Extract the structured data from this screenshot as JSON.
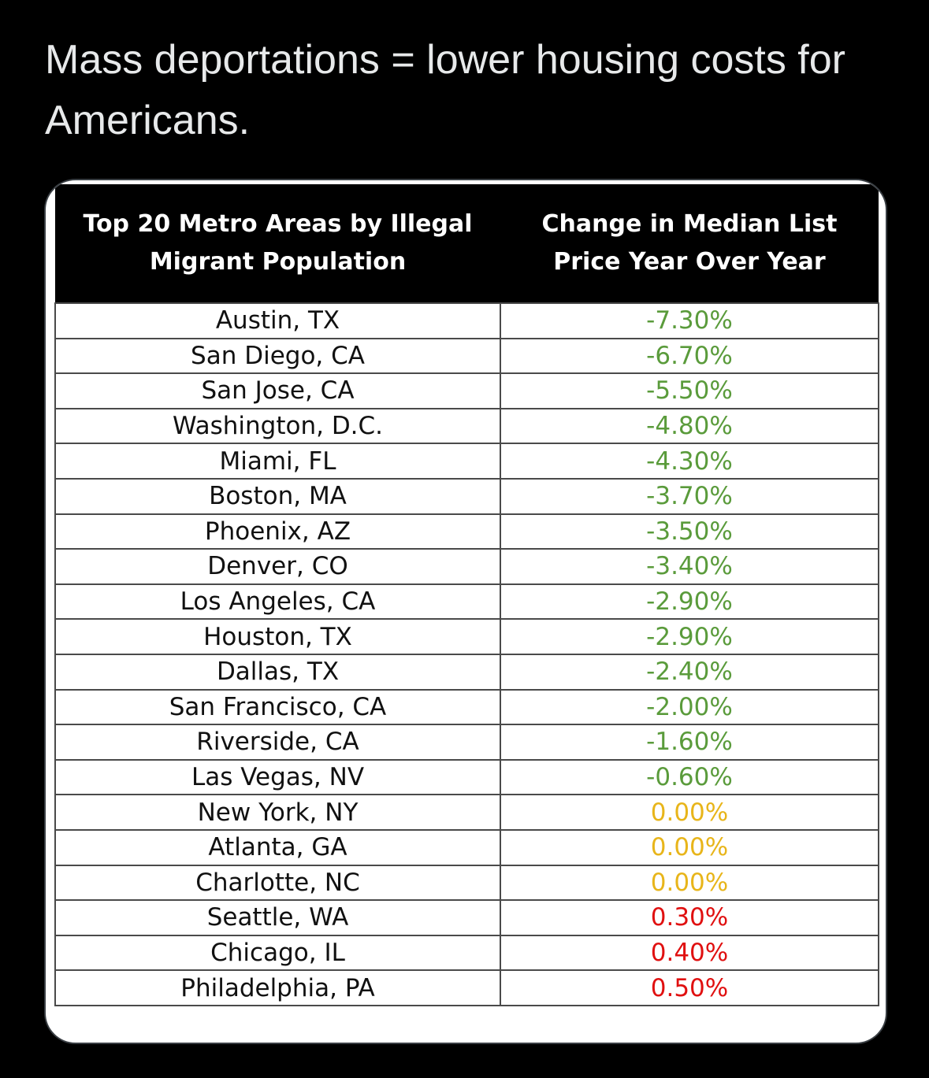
{
  "post": {
    "text": "Mass deportations = lower housing costs for Americans."
  },
  "colors": {
    "negative": "#5a9b3b",
    "zero": "#e8b51a",
    "positive": "#e01010"
  },
  "table": {
    "headers": [
      "Top 20 Metro Areas by Illegal Migrant Population",
      "Change in Median List Price Year Over Year"
    ],
    "rows": [
      {
        "metro": "Austin, TX",
        "change": "-7.30%",
        "tone": "green"
      },
      {
        "metro": "San Diego, CA",
        "change": "-6.70%",
        "tone": "green"
      },
      {
        "metro": "San Jose, CA",
        "change": "-5.50%",
        "tone": "green"
      },
      {
        "metro": "Washington, D.C.",
        "change": "-4.80%",
        "tone": "green"
      },
      {
        "metro": "Miami, FL",
        "change": "-4.30%",
        "tone": "green"
      },
      {
        "metro": "Boston, MA",
        "change": "-3.70%",
        "tone": "green"
      },
      {
        "metro": "Phoenix, AZ",
        "change": "-3.50%",
        "tone": "green"
      },
      {
        "metro": "Denver, CO",
        "change": "-3.40%",
        "tone": "green"
      },
      {
        "metro": "Los Angeles, CA",
        "change": "-2.90%",
        "tone": "green"
      },
      {
        "metro": "Houston, TX",
        "change": "-2.90%",
        "tone": "green"
      },
      {
        "metro": "Dallas, TX",
        "change": "-2.40%",
        "tone": "green"
      },
      {
        "metro": "San Francisco, CA",
        "change": "-2.00%",
        "tone": "green"
      },
      {
        "metro": "Riverside, CA",
        "change": "-1.60%",
        "tone": "green"
      },
      {
        "metro": "Las Vegas, NV",
        "change": "-0.60%",
        "tone": "green"
      },
      {
        "metro": "New York, NY",
        "change": "0.00%",
        "tone": "yellow"
      },
      {
        "metro": "Atlanta, GA",
        "change": "0.00%",
        "tone": "yellow"
      },
      {
        "metro": "Charlotte, NC",
        "change": "0.00%",
        "tone": "yellow"
      },
      {
        "metro": "Seattle, WA",
        "change": "0.30%",
        "tone": "red"
      },
      {
        "metro": "Chicago, IL",
        "change": "0.40%",
        "tone": "red"
      },
      {
        "metro": "Philadelphia, PA",
        "change": "0.50%",
        "tone": "red"
      }
    ]
  }
}
